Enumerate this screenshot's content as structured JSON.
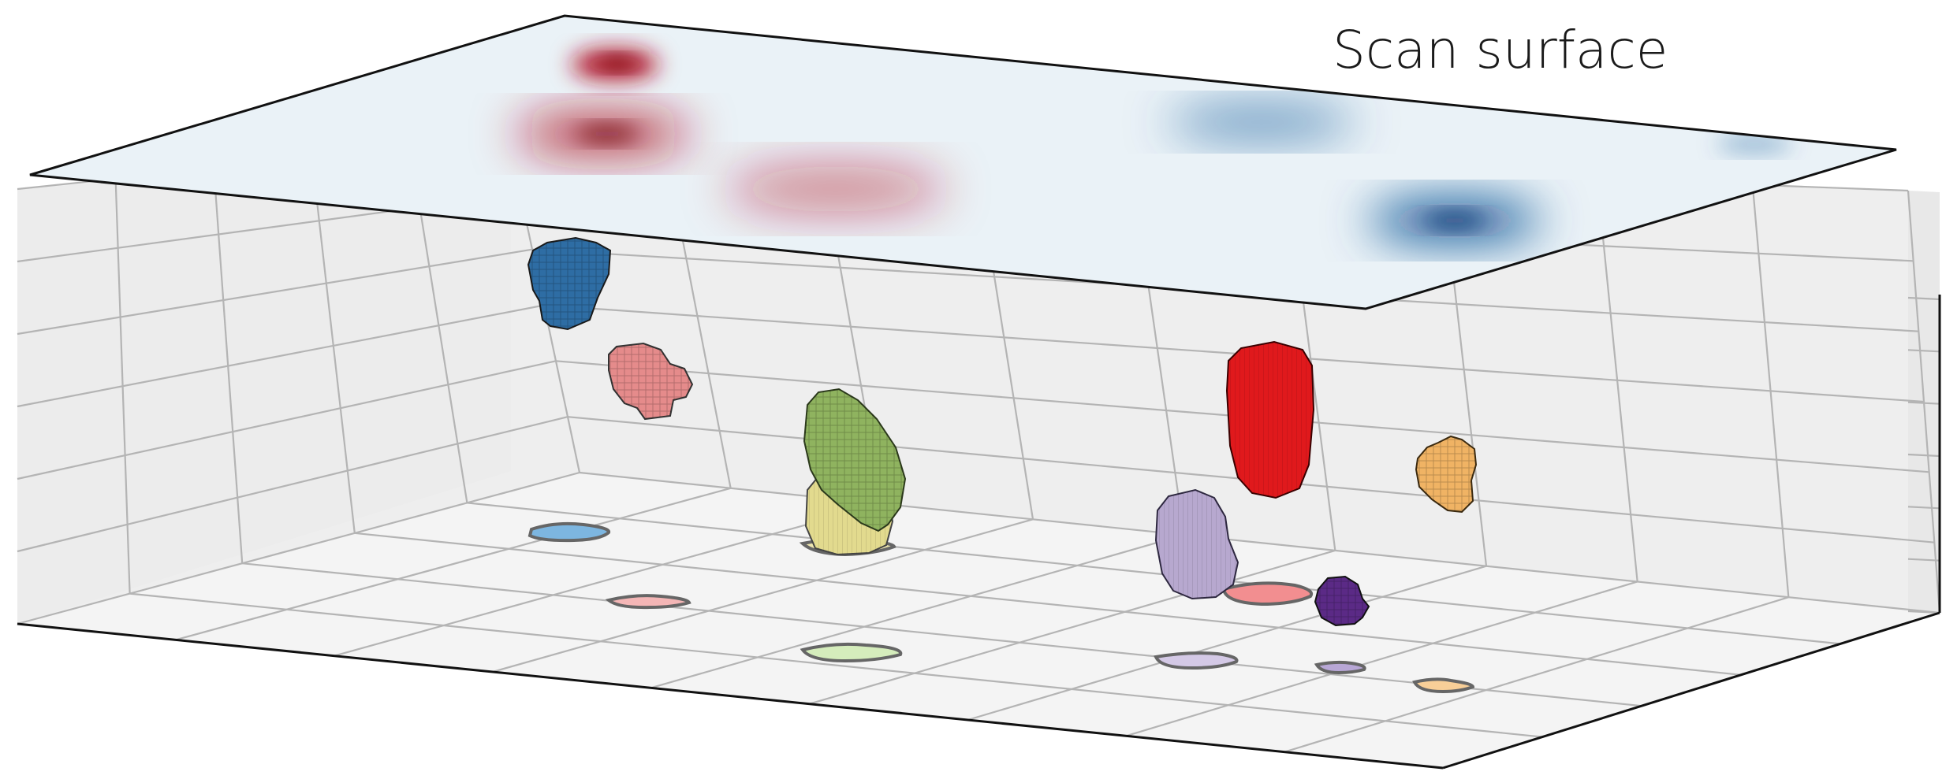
{
  "figure": {
    "scan_surface_label": "Scan surface"
  },
  "colors": {
    "pane_back": "#eeeeee",
    "pane_floor": "#f4f4f4",
    "pane_side": "#ececec",
    "grid_line": "#b4b4b4",
    "axis_line": "#111111",
    "surface_base": "#eaf2f7",
    "positive_anomaly": "#b2182b",
    "negative_anomaly": "#0b4f93",
    "footprint_outline": "#666666"
  },
  "scan_surface_anomalies": [
    {
      "sign": "positive",
      "strength": 1.0
    },
    {
      "sign": "positive",
      "strength": 0.85
    },
    {
      "sign": "positive",
      "strength": 0.35
    },
    {
      "sign": "negative",
      "strength": 0.55
    },
    {
      "sign": "negative",
      "strength": 1.0
    },
    {
      "sign": "negative",
      "strength": 0.25
    }
  ],
  "bodies": [
    {
      "id": "blue",
      "color": "#2e6da4"
    },
    {
      "id": "pink",
      "color": "#e58b8b"
    },
    {
      "id": "green",
      "color": "#8fb35f"
    },
    {
      "id": "khaki",
      "color": "#e2da8e"
    },
    {
      "id": "red",
      "color": "#e0191c"
    },
    {
      "id": "lilac",
      "color": "#b7a8cf"
    },
    {
      "id": "purple",
      "color": "#5b2a86"
    },
    {
      "id": "orange",
      "color": "#f0b364"
    }
  ],
  "footprints": [
    {
      "id": "blue",
      "color": "#7db6e0"
    },
    {
      "id": "pink",
      "color": "#f4b6b6"
    },
    {
      "id": "khaki",
      "color": "#eee6b0"
    },
    {
      "id": "green",
      "color": "#d5edbc"
    },
    {
      "id": "red",
      "color": "#f28e90"
    },
    {
      "id": "lilac",
      "color": "#d4c9e6"
    },
    {
      "id": "purple",
      "color": "#b8a7d6"
    },
    {
      "id": "orange",
      "color": "#f8cf98"
    }
  ]
}
